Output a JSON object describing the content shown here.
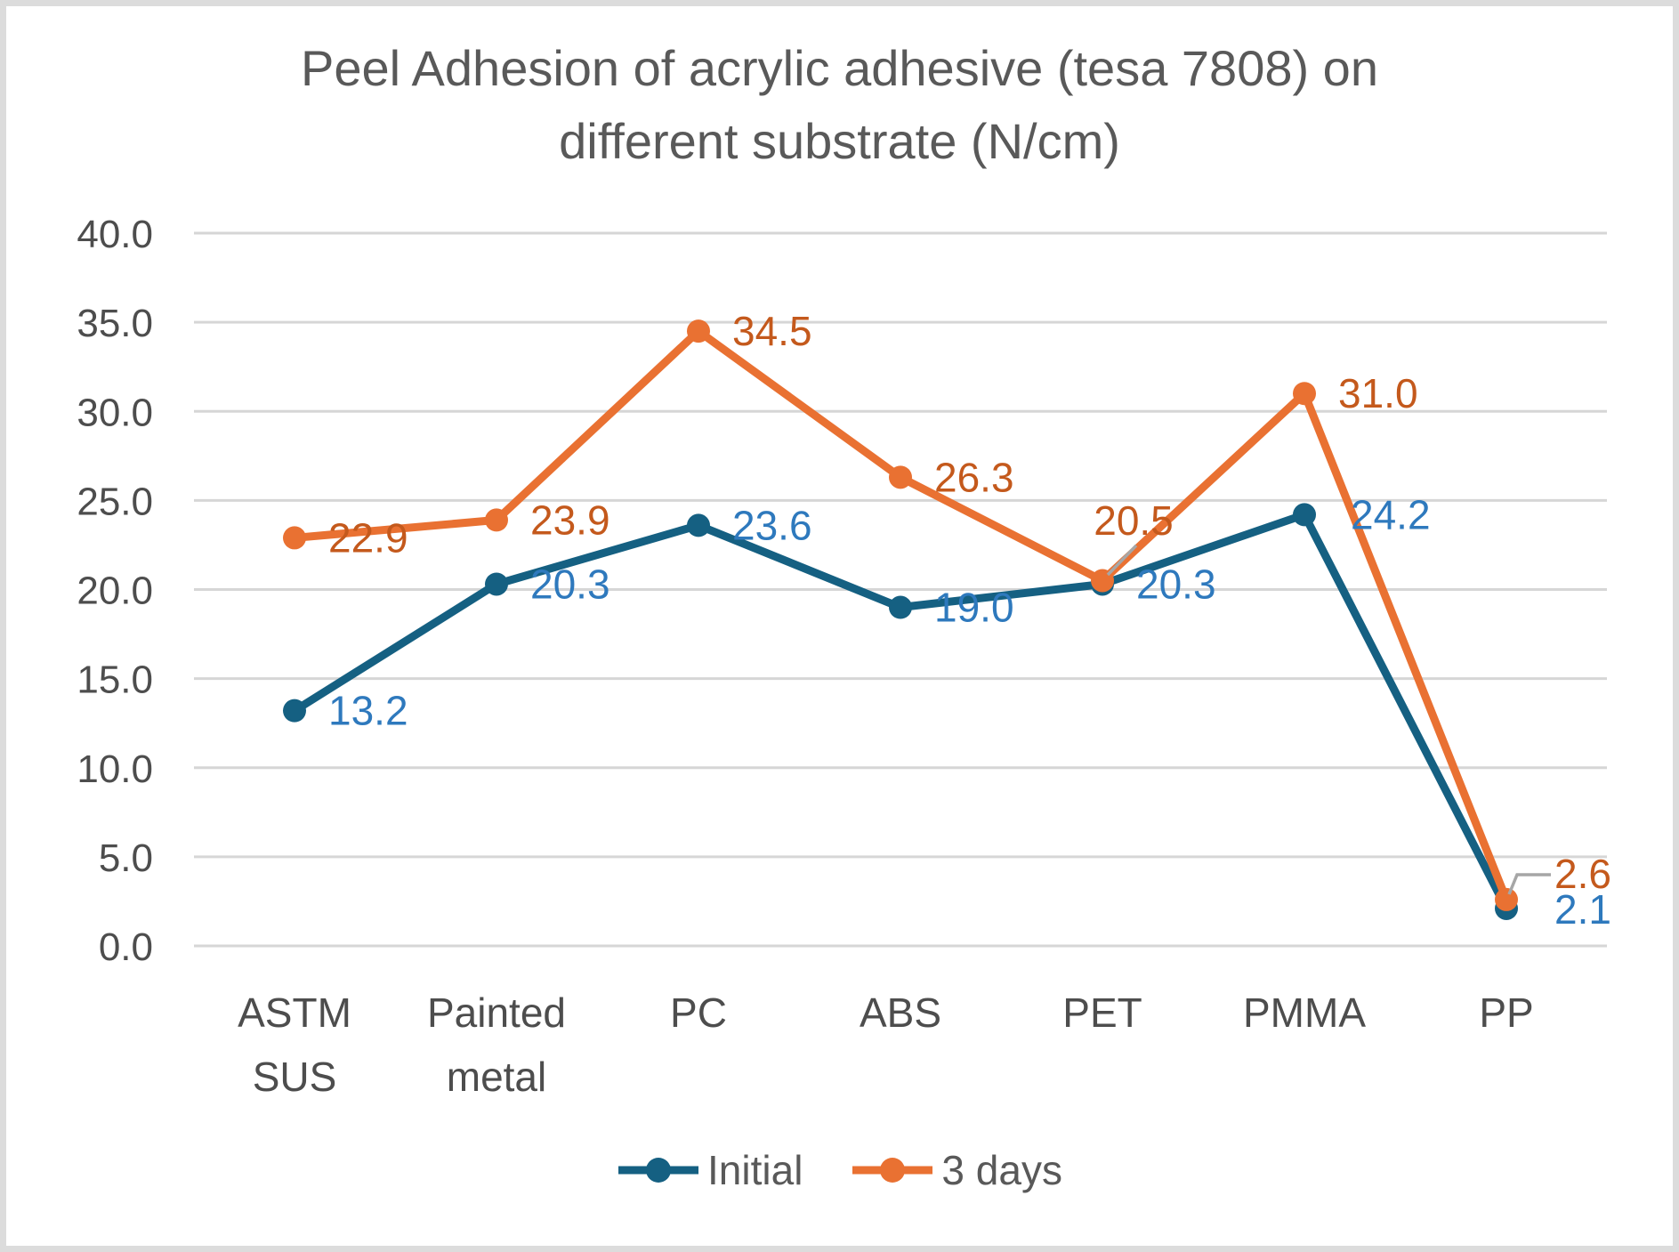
{
  "title": {
    "line1": "Peel Adhesion of acrylic adhesive (tesa 7808) on",
    "line2": "different substrate (N/cm)"
  },
  "chart_data": {
    "type": "line",
    "title": "Peel Adhesion of acrylic adhesive (tesa 7808) on different substrate (N/cm)",
    "categories": [
      "ASTM SUS",
      "Painted metal",
      "PC",
      "ABS",
      "PET",
      "PMMA",
      "PP"
    ],
    "category_lines": [
      [
        "ASTM",
        "SUS"
      ],
      [
        "Painted",
        "metal"
      ],
      [
        "PC"
      ],
      [
        "ABS"
      ],
      [
        "PET"
      ],
      [
        "PMMA"
      ],
      [
        "PP"
      ]
    ],
    "series": [
      {
        "name": "Initial",
        "color": "#156082",
        "label_color": "#2e79bd",
        "values": [
          13.2,
          20.3,
          23.6,
          19.0,
          20.3,
          24.2,
          2.1
        ]
      },
      {
        "name": "3 days",
        "color": "#e97132",
        "label_color": "#c4591c",
        "values": [
          22.9,
          23.9,
          34.5,
          26.3,
          20.5,
          31.0,
          2.6
        ]
      }
    ],
    "xlabel": "",
    "ylabel": "",
    "ylim": [
      0,
      40
    ],
    "ytick_step": 5,
    "ytick_labels": [
      "0.0",
      "5.0",
      "10.0",
      "15.0",
      "20.0",
      "25.0",
      "30.0",
      "35.0",
      "40.0"
    ],
    "grid": true,
    "gridline_color": "#d6d6d6",
    "axis_text_color": "#4d4d4d",
    "leader_line_color": "#a6a6a6",
    "legend_position": "bottom",
    "marker": "circle"
  }
}
